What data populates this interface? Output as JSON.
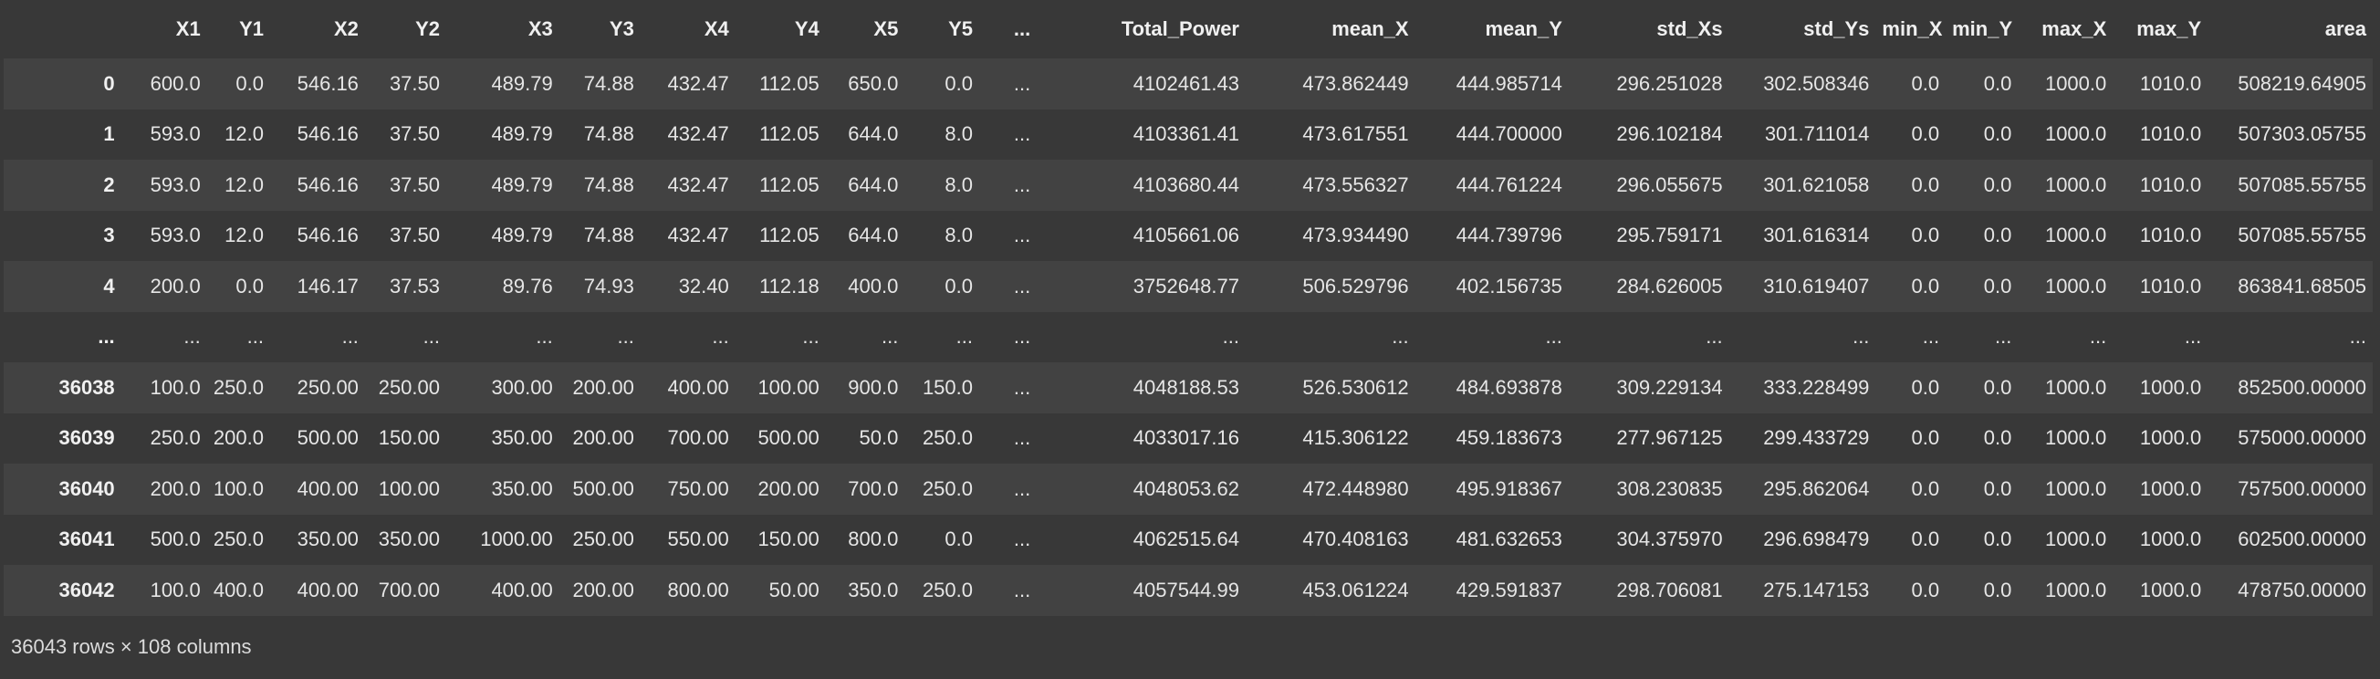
{
  "table": {
    "index_header": "",
    "columns": [
      "X1",
      "Y1",
      "X2",
      "Y2",
      "X3",
      "Y3",
      "X4",
      "Y4",
      "X5",
      "Y5",
      "...",
      "Total_Power",
      "mean_X",
      "mean_Y",
      "std_Xs",
      "std_Ys",
      "min_X",
      "min_Y",
      "max_X",
      "max_Y",
      "area"
    ],
    "rows": [
      {
        "index": "0",
        "cells": [
          "600.0",
          "0.0",
          "546.16",
          "37.50",
          "489.79",
          "74.88",
          "432.47",
          "112.05",
          "650.0",
          "0.0",
          "...",
          "4102461.43",
          "473.862449",
          "444.985714",
          "296.251028",
          "302.508346",
          "0.0",
          "0.0",
          "1000.0",
          "1010.0",
          "508219.64905"
        ]
      },
      {
        "index": "1",
        "cells": [
          "593.0",
          "12.0",
          "546.16",
          "37.50",
          "489.79",
          "74.88",
          "432.47",
          "112.05",
          "644.0",
          "8.0",
          "...",
          "4103361.41",
          "473.617551",
          "444.700000",
          "296.102184",
          "301.711014",
          "0.0",
          "0.0",
          "1000.0",
          "1010.0",
          "507303.05755"
        ]
      },
      {
        "index": "2",
        "cells": [
          "593.0",
          "12.0",
          "546.16",
          "37.50",
          "489.79",
          "74.88",
          "432.47",
          "112.05",
          "644.0",
          "8.0",
          "...",
          "4103680.44",
          "473.556327",
          "444.761224",
          "296.055675",
          "301.621058",
          "0.0",
          "0.0",
          "1000.0",
          "1010.0",
          "507085.55755"
        ]
      },
      {
        "index": "3",
        "cells": [
          "593.0",
          "12.0",
          "546.16",
          "37.50",
          "489.79",
          "74.88",
          "432.47",
          "112.05",
          "644.0",
          "8.0",
          "...",
          "4105661.06",
          "473.934490",
          "444.739796",
          "295.759171",
          "301.616314",
          "0.0",
          "0.0",
          "1000.0",
          "1010.0",
          "507085.55755"
        ]
      },
      {
        "index": "4",
        "cells": [
          "200.0",
          "0.0",
          "146.17",
          "37.53",
          "89.76",
          "74.93",
          "32.40",
          "112.18",
          "400.0",
          "0.0",
          "...",
          "3752648.77",
          "506.529796",
          "402.156735",
          "284.626005",
          "310.619407",
          "0.0",
          "0.0",
          "1000.0",
          "1010.0",
          "863841.68505"
        ]
      },
      {
        "index": "...",
        "cells": [
          "...",
          "...",
          "...",
          "...",
          "...",
          "...",
          "...",
          "...",
          "...",
          "...",
          "...",
          "...",
          "...",
          "...",
          "...",
          "...",
          "...",
          "...",
          "...",
          "...",
          "..."
        ]
      },
      {
        "index": "36038",
        "cells": [
          "100.0",
          "250.0",
          "250.00",
          "250.00",
          "300.00",
          "200.00",
          "400.00",
          "100.00",
          "900.0",
          "150.0",
          "...",
          "4048188.53",
          "526.530612",
          "484.693878",
          "309.229134",
          "333.228499",
          "0.0",
          "0.0",
          "1000.0",
          "1000.0",
          "852500.00000"
        ]
      },
      {
        "index": "36039",
        "cells": [
          "250.0",
          "200.0",
          "500.00",
          "150.00",
          "350.00",
          "200.00",
          "700.00",
          "500.00",
          "50.0",
          "250.0",
          "...",
          "4033017.16",
          "415.306122",
          "459.183673",
          "277.967125",
          "299.433729",
          "0.0",
          "0.0",
          "1000.0",
          "1000.0",
          "575000.00000"
        ]
      },
      {
        "index": "36040",
        "cells": [
          "200.0",
          "100.0",
          "400.00",
          "100.00",
          "350.00",
          "500.00",
          "750.00",
          "200.00",
          "700.0",
          "250.0",
          "...",
          "4048053.62",
          "472.448980",
          "495.918367",
          "308.230835",
          "295.862064",
          "0.0",
          "0.0",
          "1000.0",
          "1000.0",
          "757500.00000"
        ]
      },
      {
        "index": "36041",
        "cells": [
          "500.0",
          "250.0",
          "350.00",
          "350.00",
          "1000.00",
          "250.00",
          "550.00",
          "150.00",
          "800.0",
          "0.0",
          "...",
          "4062515.64",
          "470.408163",
          "481.632653",
          "304.375970",
          "296.698479",
          "0.0",
          "0.0",
          "1000.0",
          "1000.0",
          "602500.00000"
        ]
      },
      {
        "index": "36042",
        "cells": [
          "100.0",
          "400.0",
          "400.00",
          "700.00",
          "400.00",
          "200.00",
          "800.00",
          "50.00",
          "350.0",
          "250.0",
          "...",
          "4057544.99",
          "453.061224",
          "429.591837",
          "298.706081",
          "275.147153",
          "0.0",
          "0.0",
          "1000.0",
          "1000.0",
          "478750.00000"
        ]
      }
    ]
  },
  "footer": {
    "shape_text": "36043 rows × 108 columns"
  },
  "colors": {
    "background": "#383838",
    "row_odd": "#424242",
    "row_even": "#383838",
    "text": "#e6e6e6"
  }
}
